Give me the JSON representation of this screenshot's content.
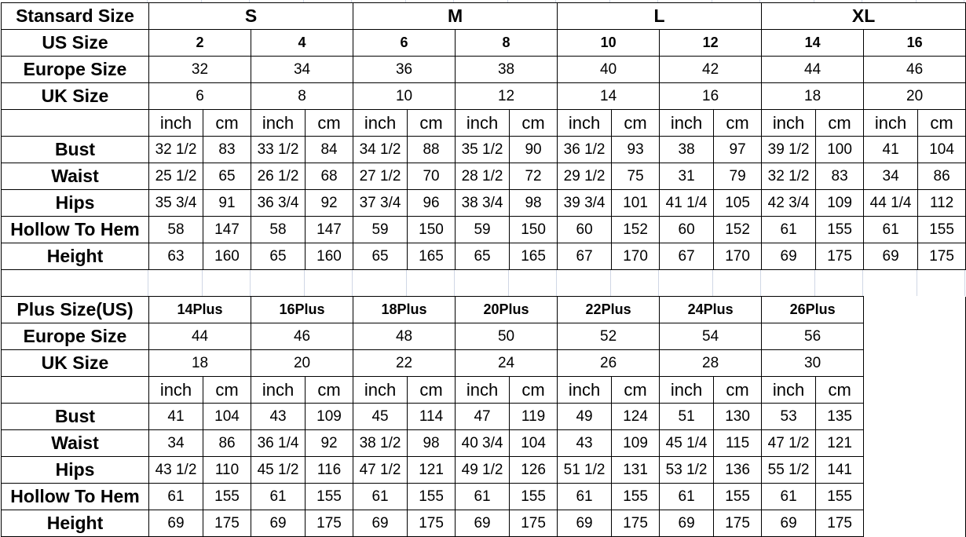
{
  "standard": {
    "header_label": "Stansard Size",
    "size_groups": [
      "S",
      "M",
      "L",
      "XL"
    ],
    "size_rows": [
      {
        "label": "US Size",
        "values": [
          "2",
          "4",
          "6",
          "8",
          "10",
          "12",
          "14",
          "16"
        ]
      },
      {
        "label": "Europe Size",
        "values": [
          "32",
          "34",
          "36",
          "38",
          "40",
          "42",
          "44",
          "46"
        ]
      },
      {
        "label": "UK Size",
        "values": [
          "6",
          "8",
          "10",
          "12",
          "14",
          "16",
          "18",
          "20"
        ]
      }
    ],
    "units": [
      "inch",
      "cm"
    ],
    "measurements": [
      {
        "label": "Bust",
        "values": [
          "32 1/2",
          "83",
          "33 1/2",
          "84",
          "34 1/2",
          "88",
          "35 1/2",
          "90",
          "36 1/2",
          "93",
          "38",
          "97",
          "39 1/2",
          "100",
          "41",
          "104"
        ]
      },
      {
        "label": "Waist",
        "values": [
          "25 1/2",
          "65",
          "26 1/2",
          "68",
          "27 1/2",
          "70",
          "28 1/2",
          "72",
          "29 1/2",
          "75",
          "31",
          "79",
          "32 1/2",
          "83",
          "34",
          "86"
        ]
      },
      {
        "label": "Hips",
        "values": [
          "35 3/4",
          "91",
          "36 3/4",
          "92",
          "37 3/4",
          "96",
          "38 3/4",
          "98",
          "39 3/4",
          "101",
          "41 1/4",
          "105",
          "42 3/4",
          "109",
          "44 1/4",
          "112"
        ]
      },
      {
        "label": "Hollow To Hem",
        "values": [
          "58",
          "147",
          "58",
          "147",
          "59",
          "150",
          "59",
          "150",
          "60",
          "152",
          "60",
          "152",
          "61",
          "155",
          "61",
          "155"
        ]
      },
      {
        "label": "Height",
        "values": [
          "63",
          "160",
          "65",
          "160",
          "65",
          "165",
          "65",
          "165",
          "67",
          "170",
          "67",
          "170",
          "69",
          "175",
          "69",
          "175"
        ]
      }
    ]
  },
  "plus": {
    "header_label": "Plus Size(US)",
    "sizes": [
      "14Plus",
      "16Plus",
      "18Plus",
      "20Plus",
      "22Plus",
      "24Plus",
      "26Plus"
    ],
    "size_rows": [
      {
        "label": "Europe Size",
        "values": [
          "44",
          "46",
          "48",
          "50",
          "52",
          "54",
          "56"
        ]
      },
      {
        "label": "UK Size",
        "values": [
          "18",
          "20",
          "22",
          "24",
          "26",
          "28",
          "30"
        ]
      }
    ],
    "units": [
      "inch",
      "cm"
    ],
    "measurements": [
      {
        "label": "Bust",
        "values": [
          "41",
          "104",
          "43",
          "109",
          "45",
          "114",
          "47",
          "119",
          "49",
          "124",
          "51",
          "130",
          "53",
          "135"
        ]
      },
      {
        "label": "Waist",
        "values": [
          "34",
          "86",
          "36 1/4",
          "92",
          "38 1/2",
          "98",
          "40 3/4",
          "104",
          "43",
          "109",
          "45 1/4",
          "115",
          "47 1/2",
          "121"
        ]
      },
      {
        "label": "Hips",
        "values": [
          "43 1/2",
          "110",
          "45 1/2",
          "116",
          "47 1/2",
          "121",
          "49 1/2",
          "126",
          "51 1/2",
          "131",
          "53 1/2",
          "136",
          "55 1/2",
          "141"
        ]
      },
      {
        "label": "Hollow To Hem",
        "values": [
          "61",
          "155",
          "61",
          "155",
          "61",
          "155",
          "61",
          "155",
          "61",
          "155",
          "61",
          "155",
          "61",
          "155"
        ]
      },
      {
        "label": "Height",
        "values": [
          "69",
          "175",
          "69",
          "175",
          "69",
          "175",
          "69",
          "175",
          "69",
          "175",
          "69",
          "175",
          "69",
          "175"
        ]
      }
    ]
  }
}
